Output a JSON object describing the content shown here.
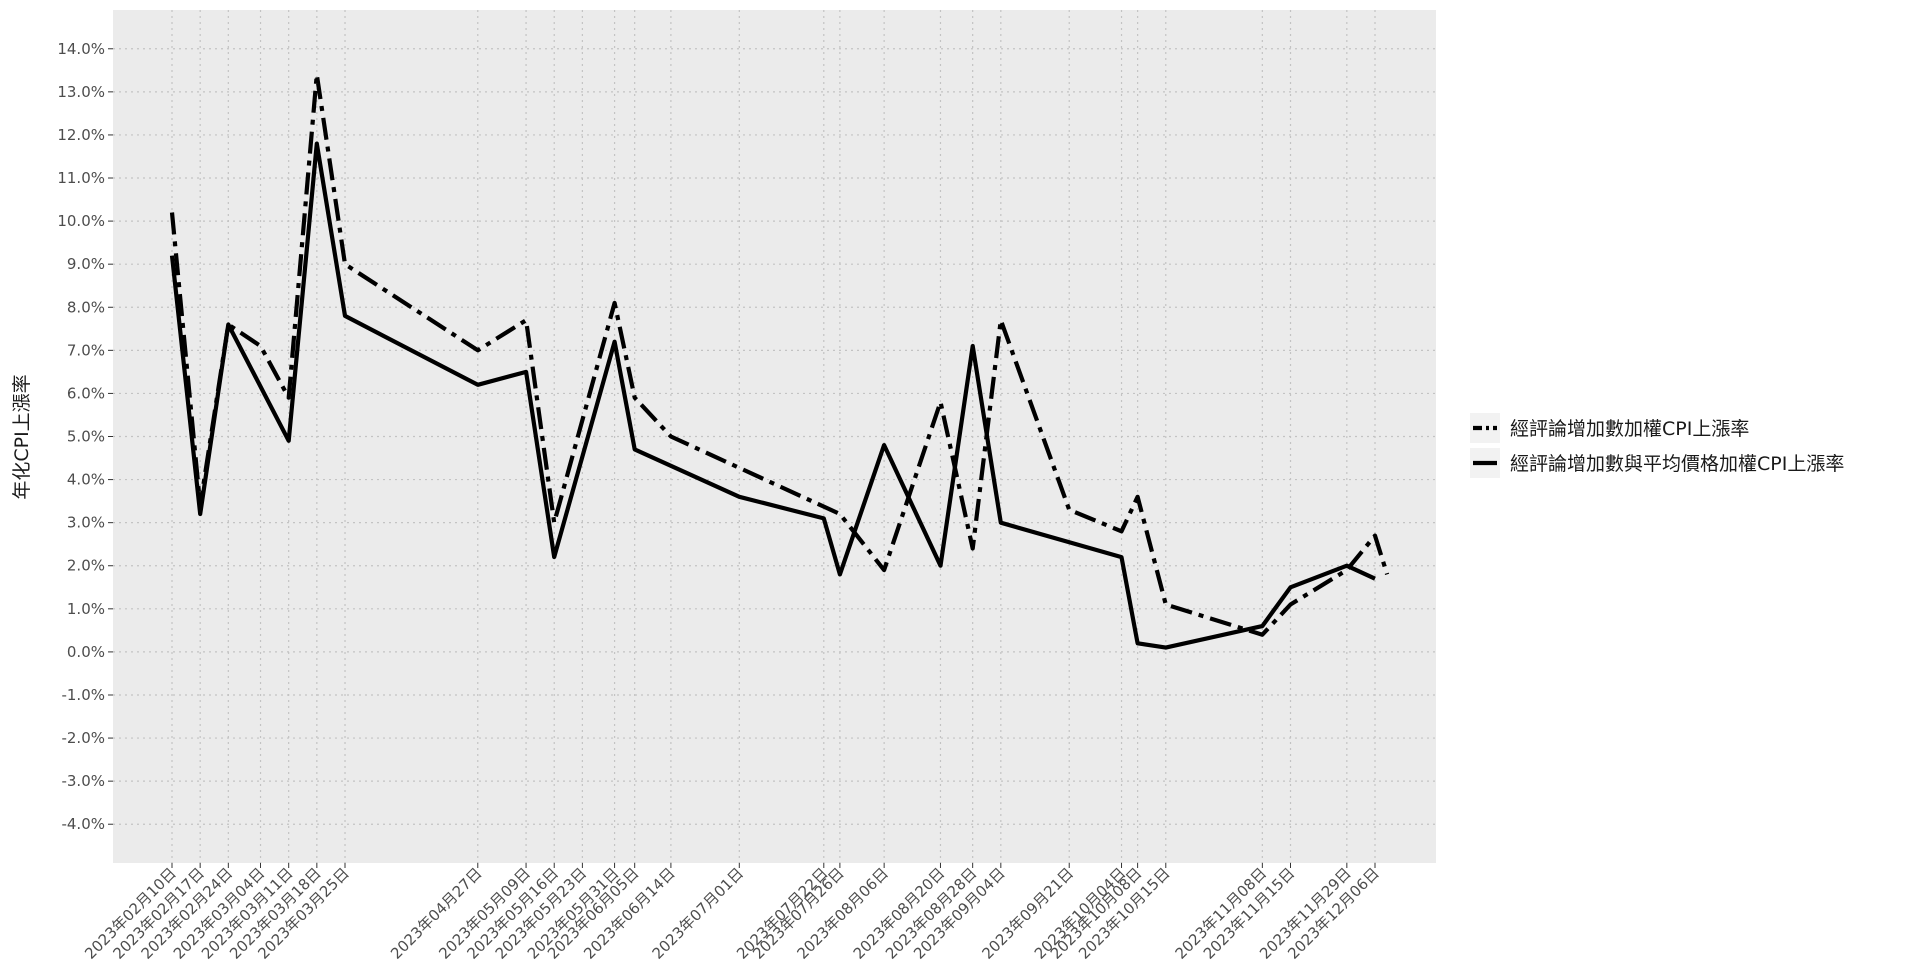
{
  "chart_data": {
    "type": "line",
    "title": "",
    "xlabel": "",
    "ylabel": "年化CPI上漲率",
    "ylim": [
      -4.9,
      14.9
    ],
    "y_ticks": [
      -4,
      -3,
      -2,
      -1,
      0,
      1,
      2,
      3,
      4,
      5,
      6,
      7,
      8,
      9,
      10,
      11,
      12,
      13,
      14
    ],
    "y_tick_labels": [
      "-4.0%",
      "-3.0%",
      "-2.0%",
      "-1.0%",
      "0.0%",
      "1.0%",
      "2.0%",
      "3.0%",
      "4.0%",
      "5.0%",
      "6.0%",
      "7.0%",
      "8.0%",
      "9.0%",
      "10.0%",
      "11.0%",
      "12.0%",
      "13.0%",
      "14.0%"
    ],
    "grid": true,
    "legend_position": "right",
    "x": [
      "2023-02-10",
      "2023-02-17",
      "2023-02-24",
      "2023-03-04",
      "2023-03-11",
      "2023-03-18",
      "2023-03-25",
      "2023-04-27",
      "2023-05-09",
      "2023-05-16",
      "2023-05-23",
      "2023-05-31",
      "2023-06-05",
      "2023-06-14",
      "2023-07-01",
      "2023-07-22",
      "2023-07-26",
      "2023-08-06",
      "2023-08-20",
      "2023-08-28",
      "2023-09-04",
      "2023-09-21",
      "2023-10-04",
      "2023-10-08",
      "2023-10-15",
      "2023-11-08",
      "2023-11-15",
      "2023-11-29",
      "2023-12-06"
    ],
    "x_tick_labels": [
      "2023年02月10日",
      "2023年02月17日",
      "2023年02月24日",
      "2023年03月04日",
      "2023年03月11日",
      "2023年03月18日",
      "2023年03月25日",
      "2023年04月27日",
      "2023年05月09日",
      "2023年05月16日",
      "2023年05月23日",
      "2023年05月31日",
      "2023年06月05日",
      "2023年06月14日",
      "2023年07月01日",
      "2023年07月22日",
      "2023年07月26日",
      "2023年08月06日",
      "2023年08月20日",
      "2023年08月28日",
      "2023年09月04日",
      "2023年09月21日",
      "2023年10月04日",
      "2023年10月08日",
      "2023年10月15日",
      "2023年11月08日",
      "2023年11月15日",
      "2023年11月29日",
      "2023年12月06日"
    ],
    "series": [
      {
        "name": "經評論增加數加權CPI上漲率",
        "line_style": "dashed",
        "color": "#000000",
        "points": [
          [
            "2023-02-10",
            10.2
          ],
          [
            "2023-02-17",
            3.4
          ],
          [
            "2023-02-24",
            7.6
          ],
          [
            "2023-03-04",
            7.1
          ],
          [
            "2023-03-11",
            5.9
          ],
          [
            "2023-03-18",
            13.4
          ],
          [
            "2023-03-25",
            9.0
          ],
          [
            "2023-04-27",
            7.0
          ],
          [
            "2023-05-09",
            7.7
          ],
          [
            "2023-05-16",
            3.0
          ],
          [
            "2023-05-31",
            8.1
          ],
          [
            "2023-06-05",
            5.9
          ],
          [
            "2023-06-14",
            5.0
          ],
          [
            "2023-07-26",
            3.2
          ],
          [
            "2023-08-06",
            1.9
          ],
          [
            "2023-08-20",
            5.8
          ],
          [
            "2023-08-28",
            2.4
          ],
          [
            "2023-09-04",
            7.7
          ],
          [
            "2023-09-21",
            3.3
          ],
          [
            "2023-10-04",
            2.8
          ],
          [
            "2023-10-08",
            3.6
          ],
          [
            "2023-10-15",
            1.1
          ],
          [
            "2023-11-08",
            0.4
          ],
          [
            "2023-11-15",
            1.1
          ],
          [
            "2023-11-29",
            1.9
          ],
          [
            "2023-12-06",
            2.7
          ],
          [
            "2023-12-09",
            1.8
          ]
        ]
      },
      {
        "name": "經評論增加數與平均價格加權CPI上漲率",
        "line_style": "solid",
        "color": "#000000",
        "points": [
          [
            "2023-02-10",
            9.2
          ],
          [
            "2023-02-17",
            3.2
          ],
          [
            "2023-02-24",
            7.6
          ],
          [
            "2023-03-11",
            4.9
          ],
          [
            "2023-03-18",
            11.8
          ],
          [
            "2023-03-25",
            7.8
          ],
          [
            "2023-04-27",
            6.2
          ],
          [
            "2023-05-09",
            6.5
          ],
          [
            "2023-05-16",
            2.2
          ],
          [
            "2023-05-31",
            7.2
          ],
          [
            "2023-06-05",
            4.7
          ],
          [
            "2023-07-01",
            3.6
          ],
          [
            "2023-07-22",
            3.1
          ],
          [
            "2023-07-26",
            1.8
          ],
          [
            "2023-08-06",
            4.8
          ],
          [
            "2023-08-20",
            2.0
          ],
          [
            "2023-08-28",
            7.1
          ],
          [
            "2023-09-04",
            3.0
          ],
          [
            "2023-10-04",
            2.2
          ],
          [
            "2023-10-08",
            0.2
          ],
          [
            "2023-10-15",
            0.1
          ],
          [
            "2023-11-08",
            0.6
          ],
          [
            "2023-11-15",
            1.5
          ],
          [
            "2023-11-29",
            2.0
          ],
          [
            "2023-12-06",
            1.7
          ]
        ]
      }
    ]
  }
}
